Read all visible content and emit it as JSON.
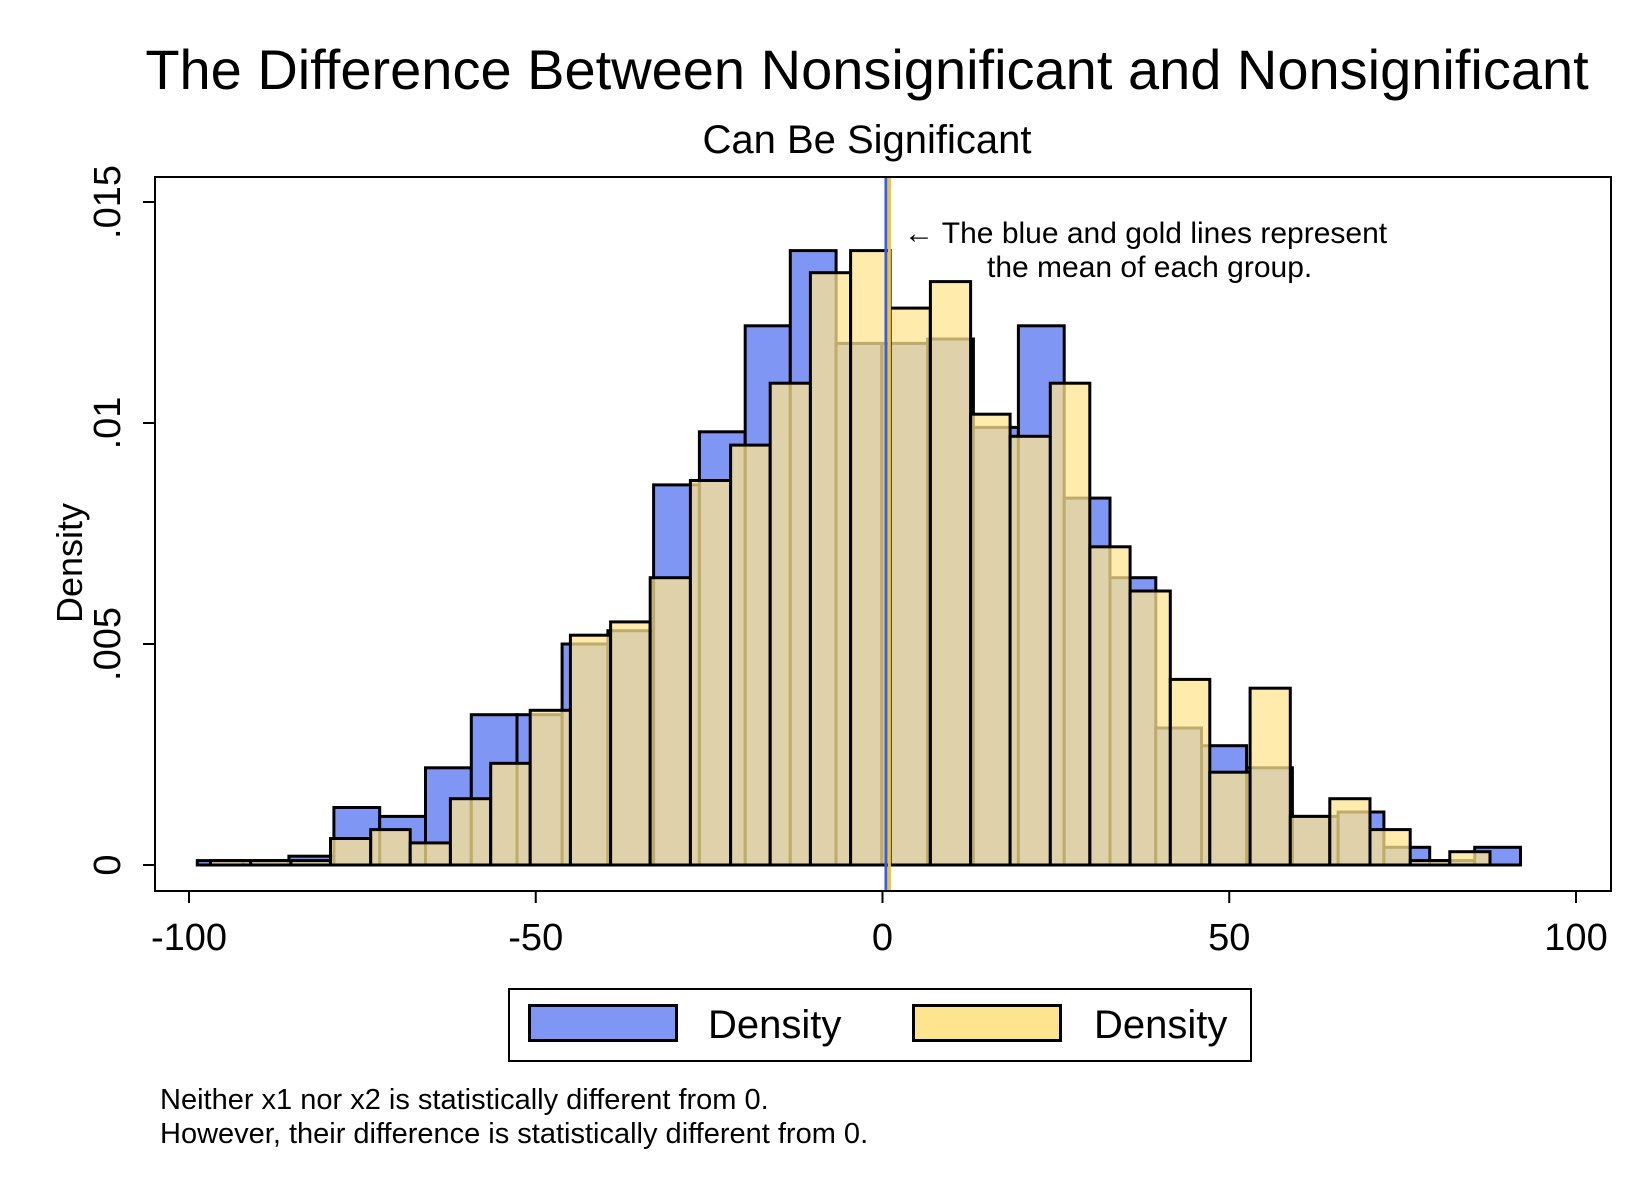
{
  "title": "The Difference Between Nonsignificant and Nonsignificant",
  "subtitle": "Can Be Significant",
  "annotation": {
    "line1": "← The blue and gold lines represent",
    "line2": "the mean of each group."
  },
  "notes": [
    "Neither x1 nor x2 is statistically different from 0.",
    "However, their difference is statistically different from 0."
  ],
  "colors": {
    "blue_fill": "#8096f5",
    "gold_fill": "#ffe48f",
    "gold_fill_opacity": 0.75,
    "blue_mean_line": "#3a5fd9",
    "gold_mean_line": "#f2c230"
  },
  "chart_data": {
    "type": "bar",
    "title": "The Difference Between Nonsignificant and Nonsignificant",
    "subtitle": "Can Be Significant",
    "xlabel": "",
    "ylabel": "Density",
    "xlim": [
      -100,
      100
    ],
    "ylim": [
      0,
      0.015
    ],
    "xticks": [
      -100,
      -50,
      0,
      50,
      100
    ],
    "xtick_labels": [
      "-100",
      "-50",
      "0",
      "50",
      "100"
    ],
    "yticks": [
      0,
      0.005,
      0.01,
      0.015
    ],
    "ytick_labels": [
      "0",
      ".005",
      ".01",
      ".015"
    ],
    "grid": false,
    "legend_position": "bottom",
    "means": [
      0.5,
      1.0
    ],
    "series": [
      {
        "name": "Density",
        "color": "#8096f5",
        "bins": [
          [
            -98.8,
            -92.2,
            0.0001
          ],
          [
            -92.2,
            -85.6,
            0.0001
          ],
          [
            -85.6,
            -79.1,
            0.0002
          ],
          [
            -79.1,
            -72.5,
            0.0013
          ],
          [
            -72.5,
            -65.9,
            0.0011
          ],
          [
            -65.9,
            -59.3,
            0.0022
          ],
          [
            -59.3,
            -52.7,
            0.0034
          ],
          [
            -52.7,
            -46.2,
            0.0034
          ],
          [
            -46.2,
            -39.6,
            0.005
          ],
          [
            -39.6,
            -33.0,
            0.0053
          ],
          [
            -33.0,
            -26.4,
            0.0086
          ],
          [
            -26.4,
            -19.8,
            0.0098
          ],
          [
            -19.8,
            -13.3,
            0.0122
          ],
          [
            -13.3,
            -6.7,
            0.0139
          ],
          [
            -6.7,
            -0.1,
            0.0118
          ],
          [
            -0.1,
            6.5,
            0.0118
          ],
          [
            6.5,
            13.1,
            0.0119
          ],
          [
            13.1,
            19.6,
            0.0099
          ],
          [
            19.6,
            26.2,
            0.0122
          ],
          [
            26.2,
            32.8,
            0.0083
          ],
          [
            32.8,
            39.4,
            0.0065
          ],
          [
            39.4,
            46.0,
            0.0031
          ],
          [
            46.0,
            52.5,
            0.0027
          ],
          [
            52.5,
            59.1,
            0.0022
          ],
          [
            59.1,
            65.7,
            0.0011
          ],
          [
            65.7,
            72.3,
            0.0012
          ],
          [
            72.3,
            78.9,
            0.0004
          ],
          [
            78.9,
            85.4,
            0.0001
          ],
          [
            85.4,
            92.0,
            0.0004
          ]
        ]
      },
      {
        "name": "Density",
        "color": "#ffe48f",
        "bins": [
          [
            -96.9,
            -91.1,
            0.0001
          ],
          [
            -91.1,
            -85.3,
            0.0001
          ],
          [
            -85.3,
            -79.6,
            0.0001
          ],
          [
            -79.6,
            -73.8,
            0.0006
          ],
          [
            -73.8,
            -68.1,
            0.0008
          ],
          [
            -68.1,
            -62.3,
            0.0005
          ],
          [
            -62.3,
            -56.5,
            0.0015
          ],
          [
            -56.5,
            -50.8,
            0.0023
          ],
          [
            -50.8,
            -45.0,
            0.0035
          ],
          [
            -45.0,
            -39.2,
            0.0052
          ],
          [
            -39.2,
            -33.5,
            0.0055
          ],
          [
            -33.5,
            -27.7,
            0.0065
          ],
          [
            -27.7,
            -21.9,
            0.0087
          ],
          [
            -21.9,
            -16.2,
            0.0095
          ],
          [
            -16.2,
            -10.4,
            0.0109
          ],
          [
            -10.4,
            -4.6,
            0.0134
          ],
          [
            -4.6,
            1.1,
            0.0139
          ],
          [
            1.1,
            6.9,
            0.0126
          ],
          [
            6.9,
            12.7,
            0.0132
          ],
          [
            12.7,
            18.4,
            0.0102
          ],
          [
            18.4,
            24.2,
            0.0097
          ],
          [
            24.2,
            29.9,
            0.0109
          ],
          [
            29.9,
            35.7,
            0.0072
          ],
          [
            35.7,
            41.5,
            0.0062
          ],
          [
            41.5,
            47.2,
            0.0042
          ],
          [
            47.2,
            53.0,
            0.0021
          ],
          [
            53.0,
            58.8,
            0.004
          ],
          [
            58.8,
            64.5,
            0.0011
          ],
          [
            64.5,
            70.3,
            0.0015
          ],
          [
            70.3,
            76.1,
            0.0008
          ],
          [
            76.1,
            81.8,
            0.0001
          ],
          [
            81.8,
            87.6,
            0.0003
          ]
        ]
      }
    ]
  }
}
